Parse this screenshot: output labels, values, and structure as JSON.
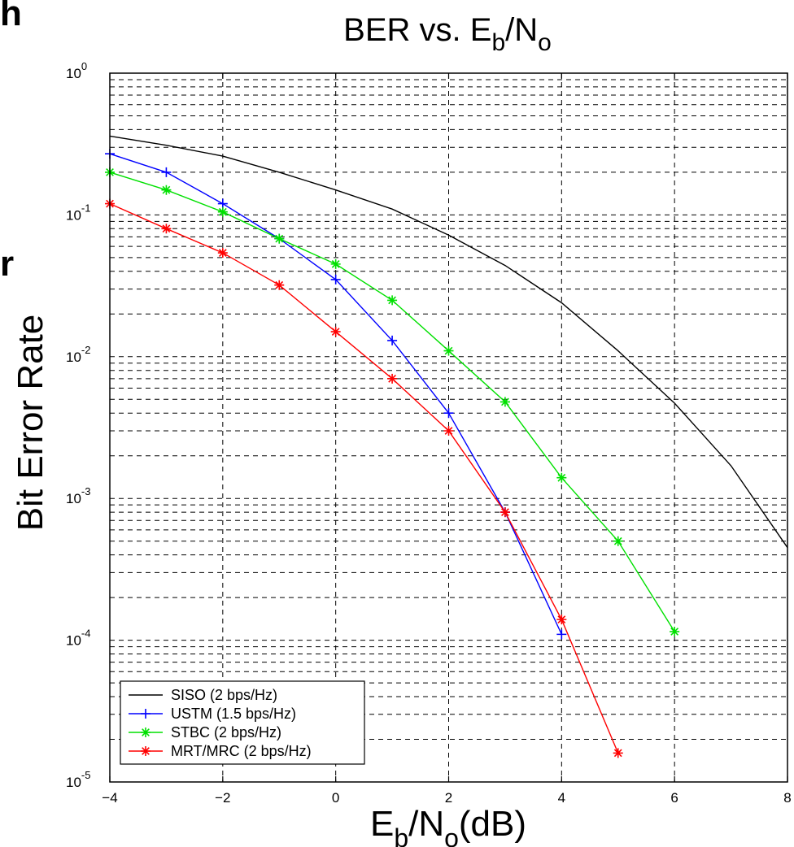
{
  "edge_fragments": [
    "h",
    "r"
  ],
  "chart_data": {
    "type": "line",
    "title": {
      "main": "BER vs. E",
      "sub1": "b",
      "mid": "/N",
      "sub2": "o"
    },
    "xlabel": {
      "main": "E",
      "sub1": "b",
      "mid": "/N",
      "sub2": "o",
      "end": "(dB)"
    },
    "ylabel": "Bit Error Rate",
    "xlim": [
      -4,
      8
    ],
    "ylim": [
      1e-05,
      1
    ],
    "yscale": "log",
    "grid": true,
    "x_ticks": [
      {
        "value": -4,
        "label": "−4"
      },
      {
        "value": -2,
        "label": "−2"
      },
      {
        "value": 0,
        "label": "0"
      },
      {
        "value": 2,
        "label": "2"
      },
      {
        "value": 4,
        "label": "4"
      },
      {
        "value": 6,
        "label": "6"
      },
      {
        "value": 8,
        "label": "8"
      }
    ],
    "y_ticks": [
      {
        "exp": 0,
        "base": "10",
        "sup": "0"
      },
      {
        "exp": -1,
        "base": "10",
        "sup": "-1"
      },
      {
        "exp": -2,
        "base": "10",
        "sup": "-2"
      },
      {
        "exp": -3,
        "base": "10",
        "sup": "-3"
      },
      {
        "exp": -4,
        "base": "10",
        "sup": "-4"
      },
      {
        "exp": -5,
        "base": "10",
        "sup": "-5"
      }
    ],
    "legend_position": "bottom-left",
    "series": [
      {
        "name": "SISO (2 bps/Hz)",
        "color": "#000000",
        "marker": "none",
        "points": [
          [
            -4,
            0.36
          ],
          [
            -3,
            0.31
          ],
          [
            -2,
            0.26
          ],
          [
            -1,
            0.2
          ],
          [
            0,
            0.15
          ],
          [
            1,
            0.11
          ],
          [
            2,
            0.072
          ],
          [
            3,
            0.044
          ],
          [
            4,
            0.024
          ],
          [
            5,
            0.011
          ],
          [
            6,
            0.0047
          ],
          [
            7,
            0.0017
          ],
          [
            8,
            0.00045
          ]
        ]
      },
      {
        "name": "USTM (1.5 bps/Hz)",
        "color": "#0000ff",
        "marker": "plus",
        "points": [
          [
            -4,
            0.27
          ],
          [
            -3,
            0.2
          ],
          [
            -2,
            0.12
          ],
          [
            -1,
            0.068
          ],
          [
            0,
            0.035
          ],
          [
            1,
            0.013
          ],
          [
            2,
            0.004
          ],
          [
            3,
            0.0008
          ],
          [
            4,
            0.00011
          ]
        ]
      },
      {
        "name": "STBC (2 bps/Hz)",
        "color": "#00e000",
        "marker": "star",
        "points": [
          [
            -4,
            0.2
          ],
          [
            -3,
            0.15
          ],
          [
            -2,
            0.105
          ],
          [
            -1,
            0.068
          ],
          [
            0,
            0.045
          ],
          [
            1,
            0.025
          ],
          [
            2,
            0.011
          ],
          [
            3,
            0.0048
          ],
          [
            4,
            0.0014
          ],
          [
            5,
            0.0005
          ],
          [
            6,
            0.000115
          ]
        ]
      },
      {
        "name": "MRT/MRC (2 bps/Hz)",
        "color": "#ff0000",
        "marker": "star",
        "points": [
          [
            -4,
            0.12
          ],
          [
            -3,
            0.08
          ],
          [
            -2,
            0.054
          ],
          [
            -1,
            0.032
          ],
          [
            0,
            0.015
          ],
          [
            1,
            0.007
          ],
          [
            2,
            0.003
          ],
          [
            3,
            0.0008
          ],
          [
            4,
            0.00014
          ],
          [
            5,
            1.6e-05
          ]
        ]
      }
    ]
  }
}
